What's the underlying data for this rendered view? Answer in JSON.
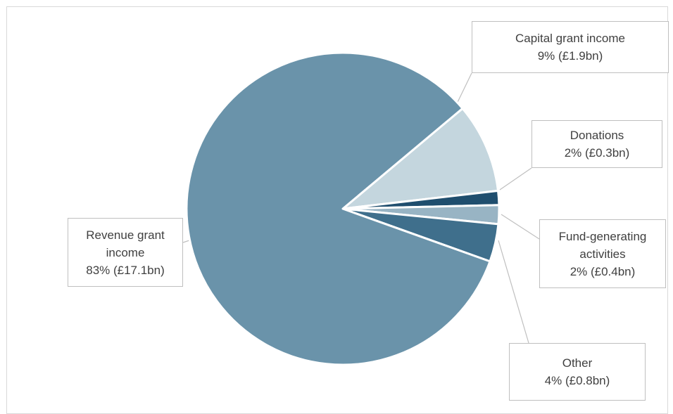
{
  "chart_data": {
    "type": "pie",
    "title": "",
    "slices": [
      {
        "label": "Capital grant income",
        "value_text": "9% (£1.9bn)",
        "percent": 9,
        "value_bn": 1.9,
        "color": "#c4d6de"
      },
      {
        "label": "Donations",
        "value_text": "2% (£0.3bn)",
        "percent": 2,
        "value_bn": 0.3,
        "color": "#1f4e6e"
      },
      {
        "label": "Fund-generating activities",
        "value_text": "2% (£0.4bn)",
        "percent": 2,
        "value_bn": 0.4,
        "color": "#98b4c4"
      },
      {
        "label": "Other",
        "value_text": "4% (£0.8bn)",
        "percent": 4,
        "value_bn": 0.8,
        "color": "#3f6f8c"
      },
      {
        "label": "Revenue grant income",
        "value_text": "83% (£17.1bn)",
        "percent": 83,
        "value_bn": 17.1,
        "color": "#6a93aa"
      }
    ]
  },
  "callouts": {
    "capital": {
      "line1": "Capital grant income",
      "line2": "9% (£1.9bn)"
    },
    "donations": {
      "line1": "Donations",
      "line2": "2% (£0.3bn)"
    },
    "fund": {
      "line1": "Fund-generating",
      "line2": "activities",
      "line3": "2% (£0.4bn)"
    },
    "other": {
      "line1": "Other",
      "line2": "4% (£0.8bn)"
    },
    "revenue": {
      "line1": "Revenue grant",
      "line2": "income",
      "line3": "83% (£17.1bn)"
    }
  }
}
